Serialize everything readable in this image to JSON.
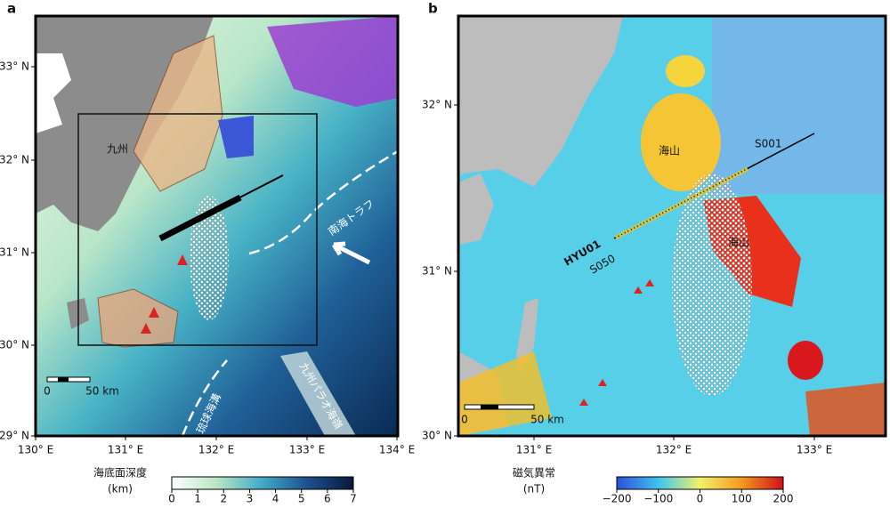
{
  "panel_a": {
    "label": "a",
    "x_ticks": [
      "130° E",
      "131° E",
      "132° E",
      "133° E",
      "134° E"
    ],
    "y_ticks": [
      "29° N",
      "30° N",
      "31° N",
      "32° N",
      "33° N"
    ],
    "annotations": {
      "kyushu": "九州",
      "nankai_trough": "南海トラフ",
      "ryukyu_trench": "琉球海溝",
      "kyushu_palau_ridge": "九州パラオ海嶺"
    },
    "scale_bar": [
      "0",
      "50 km"
    ],
    "colorbar": {
      "title": "海底面深度",
      "unit": "(km)",
      "ticks": [
        "0",
        "1",
        "2",
        "3",
        "4",
        "5",
        "6",
        "7"
      ]
    }
  },
  "panel_b": {
    "label": "b",
    "x_ticks": [
      "131° E",
      "132° E",
      "133° E"
    ],
    "y_ticks": [
      "30° N",
      "31° N",
      "32° N"
    ],
    "annotations": {
      "seamount_1": "海山",
      "seamount_2": "海山",
      "s001": "S001",
      "s050": "S050",
      "hyu01": "HYU01"
    },
    "scale_bar": [
      "0",
      "50 km"
    ],
    "colorbar": {
      "title": "磁気異常",
      "unit": "(nT)",
      "ticks": [
        "−200",
        "−100",
        "0",
        "100",
        "200"
      ]
    }
  }
}
